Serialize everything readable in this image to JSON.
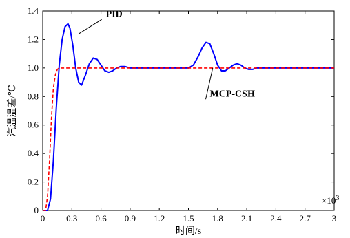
{
  "chart_data": {
    "type": "line",
    "title": "",
    "xlabel": "时间/s",
    "ylabel": "汽温温差/℃",
    "x_multiplier_label": "×10",
    "x_multiplier_exp": "3",
    "xlim": [
      0,
      3
    ],
    "ylim": [
      0,
      1.4
    ],
    "x_ticks": [
      "0",
      "0.3",
      "0.6",
      "0.9",
      "1.2",
      "1.5",
      "1.8",
      "2.1",
      "2.4",
      "2.7",
      "3"
    ],
    "y_ticks": [
      "0",
      "0.2",
      "0.4",
      "0.6",
      "0.8",
      "1.0",
      "1.2",
      "1.4"
    ],
    "grid": false,
    "series": [
      {
        "name": "PID",
        "color": "#0000ff",
        "style": "solid",
        "x": [
          0,
          0.05,
          0.08,
          0.11,
          0.14,
          0.17,
          0.2,
          0.23,
          0.26,
          0.28,
          0.31,
          0.34,
          0.37,
          0.4,
          0.44,
          0.48,
          0.52,
          0.56,
          0.6,
          0.64,
          0.68,
          0.72,
          0.76,
          0.8,
          0.85,
          0.9,
          0.95,
          1.0,
          1.05,
          1.1,
          1.15,
          1.2,
          1.3,
          1.4,
          1.5,
          1.55,
          1.6,
          1.64,
          1.68,
          1.72,
          1.76,
          1.8,
          1.84,
          1.88,
          1.92,
          1.96,
          2.0,
          2.04,
          2.08,
          2.12,
          2.16,
          2.2,
          2.28,
          2.36,
          2.44,
          2.52,
          2.6,
          2.7,
          2.8,
          3.0
        ],
        "y": [
          0,
          0,
          0.08,
          0.35,
          0.72,
          1.02,
          1.2,
          1.29,
          1.31,
          1.28,
          1.16,
          1.0,
          0.9,
          0.88,
          0.95,
          1.03,
          1.07,
          1.06,
          1.02,
          0.98,
          0.97,
          0.98,
          1.0,
          1.01,
          1.01,
          1.0,
          1.0,
          1.0,
          1.0,
          1.0,
          1.0,
          1.0,
          1.0,
          1.0,
          1.0,
          1.02,
          1.08,
          1.14,
          1.18,
          1.17,
          1.1,
          1.02,
          0.98,
          0.98,
          1.0,
          1.02,
          1.03,
          1.02,
          1.0,
          0.99,
          0.99,
          1.0,
          1.0,
          1.0,
          1.0,
          1.0,
          1.0,
          1.0,
          1.0,
          1.0
        ]
      },
      {
        "name": "MCP-CSH",
        "color": "#ff0000",
        "style": "dashed",
        "x": [
          0,
          0.03,
          0.05,
          0.07,
          0.09,
          0.11,
          0.13,
          0.15,
          0.17,
          0.2,
          0.25,
          0.5,
          1.0,
          2.0,
          3.0
        ],
        "y": [
          0,
          0,
          0.1,
          0.35,
          0.65,
          0.86,
          0.95,
          0.99,
          1.0,
          1.0,
          1.0,
          1.0,
          1.0,
          1.0,
          1.0
        ]
      }
    ],
    "annotations": [
      {
        "text": "PID",
        "series": "PID",
        "at_x": 0.37,
        "at_y": 1.24,
        "label_x": 0.65,
        "label_y": 1.36
      },
      {
        "text": "MCP-CSH",
        "series": "MCP-CSH",
        "at_x": 1.75,
        "at_y": 1.0,
        "label_x": 1.72,
        "label_y": 0.8
      }
    ]
  }
}
